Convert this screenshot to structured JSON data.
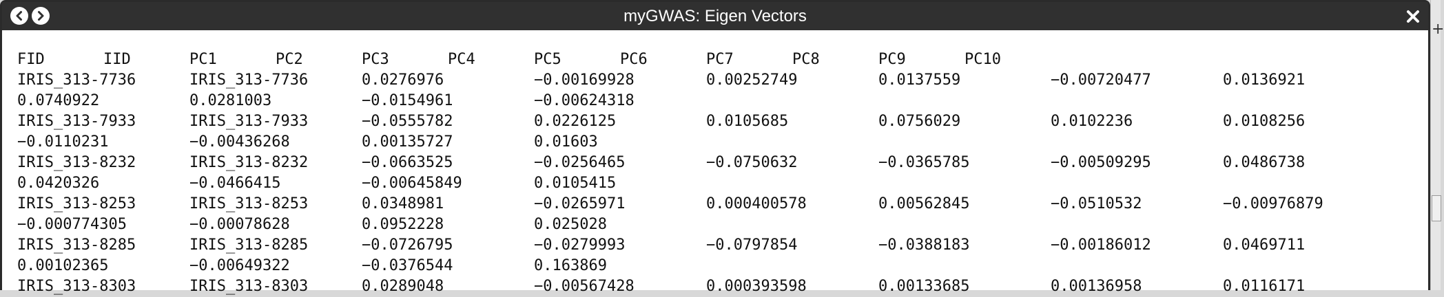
{
  "window": {
    "title": "myGWAS: Eigen Vectors"
  },
  "icons": {
    "back": "chevron-left-icon",
    "forward": "chevron-right-icon",
    "close": "close-icon"
  },
  "colors": {
    "titlebar": "#303030",
    "text": "#111111"
  },
  "file_text": {
    "header": [
      "FID",
      "IID",
      "PC1",
      "PC2",
      "PC3",
      "PC4",
      "PC5",
      "PC6",
      "PC7",
      "PC8",
      "PC9",
      "PC10"
    ],
    "rows": [
      {
        "line1": [
          "IRIS_313-7736",
          "IRIS_313-7736",
          "0.0276976",
          "−0.00169928",
          "0.00252749",
          "0.0137559",
          "−0.00720477",
          "0.0136921"
        ],
        "line2": [
          "0.0740922",
          "0.0281003",
          "−0.0154961",
          "−0.00624318"
        ]
      },
      {
        "line1": [
          "IRIS_313-7933",
          "IRIS_313-7933",
          "−0.0555782",
          "0.0226125",
          "0.0105685",
          "0.0756029",
          "0.0102236",
          "0.0108256"
        ],
        "line2": [
          "−0.0110231",
          "−0.00436268",
          "0.00135727",
          "0.01603"
        ]
      },
      {
        "line1": [
          "IRIS_313-8232",
          "IRIS_313-8232",
          "−0.0663525",
          "−0.0256465",
          "−0.0750632",
          "−0.0365785",
          "−0.00509295",
          "0.0486738"
        ],
        "line2": [
          "0.0420326",
          "−0.0466415",
          "−0.00645849",
          "0.0105415"
        ]
      },
      {
        "line1": [
          "IRIS_313-8253",
          "IRIS_313-8253",
          "0.0348981",
          "−0.0265971",
          "0.000400578",
          "0.00562845",
          "−0.0510532",
          "−0.00976879"
        ],
        "line2": [
          "−0.000774305",
          "−0.00078628",
          "0.0952228",
          "0.025028"
        ]
      },
      {
        "line1": [
          "IRIS_313-8285",
          "IRIS_313-8285",
          "−0.0726795",
          "−0.0279993",
          "−0.0797854",
          "−0.0388183",
          "−0.00186012",
          "0.0469711"
        ],
        "line2": [
          "0.00102365",
          "−0.00649322",
          "−0.0376544",
          "0.163869"
        ]
      },
      {
        "line1": [
          "IRIS_313-8303",
          "IRIS_313-8303",
          "0.0289048",
          "−0.00567428",
          "0.000393598",
          "0.00133685",
          "0.00136958",
          "0.0116171"
        ],
        "line2": []
      }
    ]
  }
}
